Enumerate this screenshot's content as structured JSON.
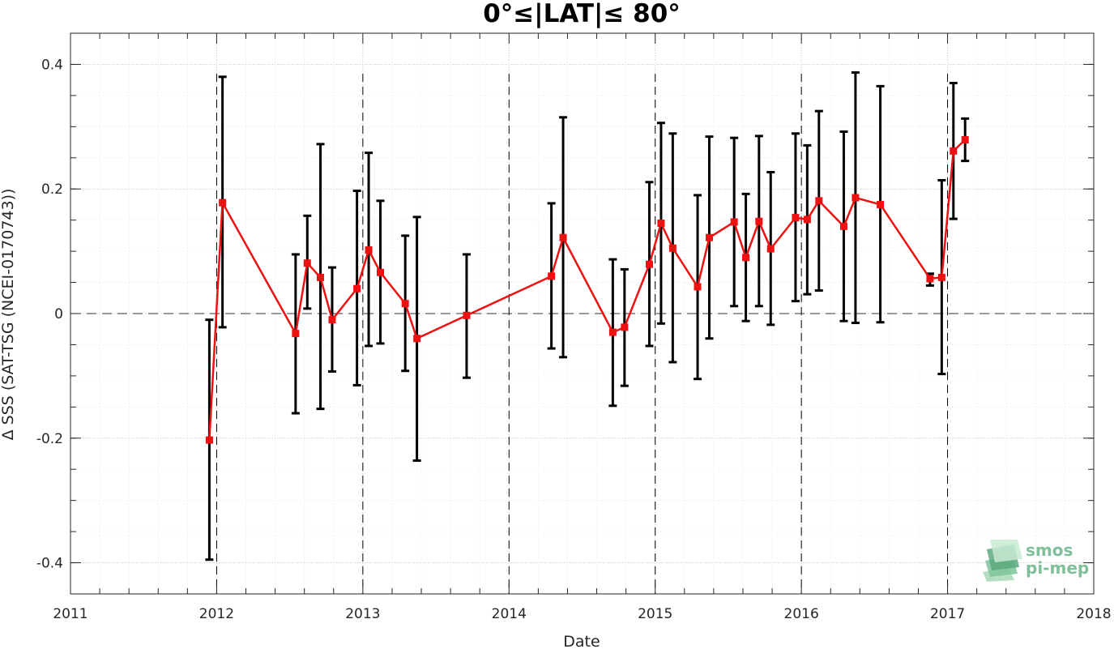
{
  "chart_data": {
    "type": "scatter",
    "title": "0°≤|LAT|≤ 80°",
    "xlabel": "Date",
    "ylabel": "Δ SSS (SAT-TSG (NCEI-0170743))",
    "xlim": [
      2011,
      2018
    ],
    "ylim": [
      -0.45,
      0.45
    ],
    "x_ticks": [
      "2011",
      "2012",
      "2013",
      "2014",
      "2015",
      "2016",
      "2017",
      "2018"
    ],
    "y_ticks": [
      "0.4",
      "0.2",
      "0",
      "-0.2",
      "-0.4"
    ],
    "y_tick_values": [
      0.4,
      0.2,
      0,
      -0.2,
      -0.4
    ],
    "grid": true,
    "reference_line": 0,
    "year_dividers": [
      2012,
      2013,
      2014,
      2015,
      2016,
      2017
    ],
    "series": [
      {
        "color": "#ee1111",
        "marker": "square",
        "points": [
          {
            "x": 2011.95,
            "y": -0.203,
            "lo": -0.395,
            "hi": -0.01
          },
          {
            "x": 2012.04,
            "y": 0.178,
            "lo": -0.022,
            "hi": 0.38
          },
          {
            "x": 2012.54,
            "y": -0.032,
            "lo": -0.16,
            "hi": 0.095
          },
          {
            "x": 2012.62,
            "y": 0.081,
            "lo": 0.008,
            "hi": 0.157
          },
          {
            "x": 2012.71,
            "y": 0.058,
            "lo": -0.153,
            "hi": 0.272
          },
          {
            "x": 2012.79,
            "y": -0.01,
            "lo": -0.093,
            "hi": 0.074
          },
          {
            "x": 2012.96,
            "y": 0.04,
            "lo": -0.115,
            "hi": 0.197
          },
          {
            "x": 2013.04,
            "y": 0.102,
            "lo": -0.052,
            "hi": 0.258
          },
          {
            "x": 2013.12,
            "y": 0.066,
            "lo": -0.048,
            "hi": 0.181
          },
          {
            "x": 2013.29,
            "y": 0.016,
            "lo": -0.092,
            "hi": 0.125
          },
          {
            "x": 2013.37,
            "y": -0.04,
            "lo": -0.236,
            "hi": 0.155
          },
          {
            "x": 2013.71,
            "y": -0.003,
            "lo": -0.103,
            "hi": 0.095
          },
          {
            "x": 2014.29,
            "y": 0.06,
            "lo": -0.056,
            "hi": 0.177
          },
          {
            "x": 2014.37,
            "y": 0.122,
            "lo": -0.07,
            "hi": 0.315
          },
          {
            "x": 2014.71,
            "y": -0.03,
            "lo": -0.148,
            "hi": 0.087
          },
          {
            "x": 2014.79,
            "y": -0.022,
            "lo": -0.116,
            "hi": 0.071
          },
          {
            "x": 2014.96,
            "y": 0.079,
            "lo": -0.052,
            "hi": 0.211
          },
          {
            "x": 2015.04,
            "y": 0.145,
            "lo": -0.016,
            "hi": 0.306
          },
          {
            "x": 2015.12,
            "y": 0.105,
            "lo": -0.078,
            "hi": 0.289
          },
          {
            "x": 2015.29,
            "y": 0.043,
            "lo": -0.105,
            "hi": 0.19
          },
          {
            "x": 2015.37,
            "y": 0.122,
            "lo": -0.04,
            "hi": 0.284
          },
          {
            "x": 2015.54,
            "y": 0.147,
            "lo": 0.012,
            "hi": 0.282
          },
          {
            "x": 2015.62,
            "y": 0.09,
            "lo": -0.012,
            "hi": 0.192
          },
          {
            "x": 2015.71,
            "y": 0.148,
            "lo": 0.012,
            "hi": 0.285
          },
          {
            "x": 2015.79,
            "y": 0.104,
            "lo": -0.018,
            "hi": 0.227
          },
          {
            "x": 2015.96,
            "y": 0.154,
            "lo": 0.02,
            "hi": 0.289
          },
          {
            "x": 2016.04,
            "y": 0.151,
            "lo": 0.031,
            "hi": 0.27
          },
          {
            "x": 2016.12,
            "y": 0.181,
            "lo": 0.037,
            "hi": 0.325
          },
          {
            "x": 2016.29,
            "y": 0.14,
            "lo": -0.012,
            "hi": 0.292
          },
          {
            "x": 2016.37,
            "y": 0.186,
            "lo": -0.015,
            "hi": 0.387
          },
          {
            "x": 2016.54,
            "y": 0.175,
            "lo": -0.014,
            "hi": 0.365
          },
          {
            "x": 2016.88,
            "y": 0.056,
            "lo": 0.045,
            "hi": 0.064
          },
          {
            "x": 2016.96,
            "y": 0.058,
            "lo": -0.097,
            "hi": 0.214
          },
          {
            "x": 2017.04,
            "y": 0.261,
            "lo": 0.152,
            "hi": 0.37
          },
          {
            "x": 2017.12,
            "y": 0.279,
            "lo": 0.245,
            "hi": 0.313
          }
        ]
      }
    ]
  },
  "logo": {
    "line1": "smos",
    "line2": "pi-mep",
    "colors": [
      "#a8d8b9",
      "#7fc49a",
      "#5aa97d",
      "#c8ead3"
    ]
  }
}
